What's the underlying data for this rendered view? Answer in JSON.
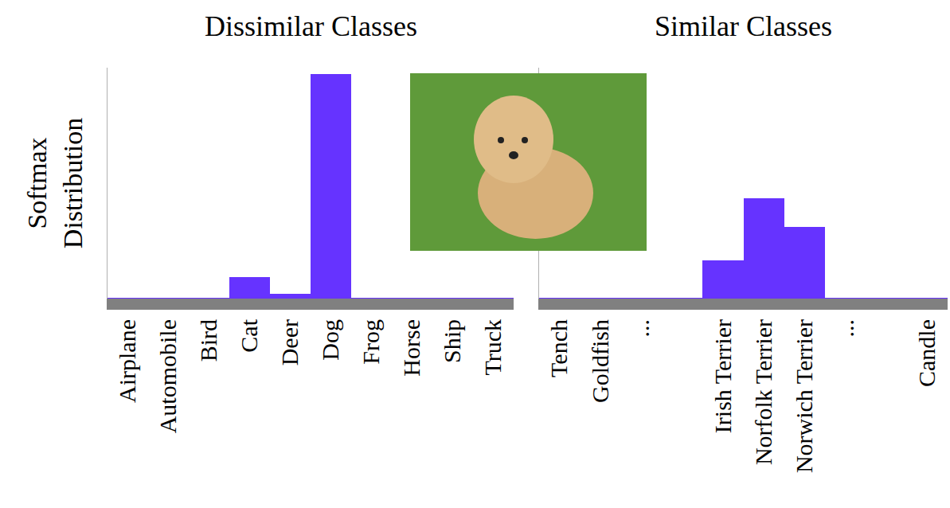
{
  "chart_data": [
    {
      "type": "bar",
      "title": "Dissimilar Classes",
      "ylabel": "Softmax Distribution",
      "categories": [
        "Airplane",
        "Automobile",
        "Bird",
        "Cat",
        "Deer",
        "Dog",
        "Frog",
        "Horse",
        "Ship",
        "Truck"
      ],
      "values": [
        0.003,
        0.003,
        0.003,
        0.083,
        0.02,
        0.875,
        0.003,
        0.003,
        0.003,
        0.003
      ],
      "color": "#6633ff",
      "ylim": [
        0,
        0.9
      ],
      "tick_labels": "x"
    },
    {
      "type": "bar",
      "title": "Similar Classes",
      "categories": [
        "Tench",
        "Goldfish",
        "...",
        null,
        "Irish Terrier",
        "Norfolk Terrier",
        "Norwich Terrier",
        "...",
        null,
        "Candle"
      ],
      "values": [
        0.003,
        0.003,
        0.003,
        0.003,
        0.15,
        0.39,
        0.28,
        0.003,
        0.003,
        0.003
      ],
      "color": "#6633ff",
      "ylim": [
        0,
        0.9
      ],
      "tick_labels": "x"
    }
  ]
}
